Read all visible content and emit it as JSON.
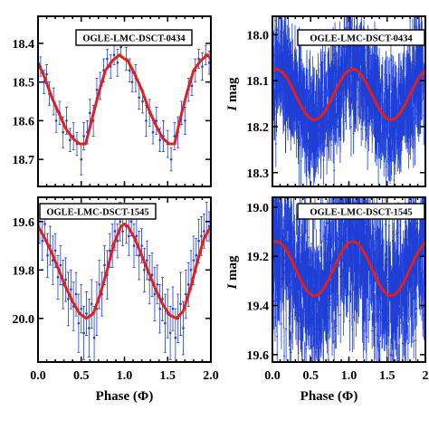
{
  "chart_data": [
    {
      "type": "scatter",
      "star": "OGLE-LMC-DSCT-0434",
      "xlabel": "",
      "ylabel": "",
      "ylabel_visible_fragment": "e",
      "xlim": [
        0.0,
        2.0
      ],
      "ylim": [
        18.77,
        18.33
      ],
      "y_inverted": true,
      "xticks": [
        "",
        "",
        "",
        "",
        ""
      ],
      "yticks": [
        "18.4",
        "18.5",
        "18.6",
        "18.7"
      ],
      "colors": {
        "points": "#1f3fd6",
        "fit": "#e0201c"
      },
      "series": [
        {
          "type": "line",
          "values_x": [
            0.0,
            0.08,
            0.16,
            0.24,
            0.32,
            0.4,
            0.48,
            0.55,
            0.62,
            0.7,
            0.78,
            0.86,
            0.94,
            1.0,
            1.04,
            1.12,
            1.2,
            1.28,
            1.36,
            1.44,
            1.52,
            1.58,
            1.64,
            1.72,
            1.8,
            1.88,
            1.96,
            2.0
          ],
          "values_y": [
            18.45,
            18.49,
            18.54,
            18.58,
            18.62,
            18.645,
            18.66,
            18.66,
            18.6,
            18.53,
            18.47,
            18.445,
            18.43,
            18.44,
            18.445,
            18.48,
            18.52,
            18.57,
            18.61,
            18.645,
            18.66,
            18.66,
            18.6,
            18.53,
            18.47,
            18.445,
            18.43,
            18.44
          ]
        }
      ],
      "points": {
        "x": [
          0.03,
          0.07,
          0.1,
          0.13,
          0.18,
          0.21,
          0.25,
          0.29,
          0.33,
          0.37,
          0.41,
          0.45,
          0.5,
          0.53,
          0.57,
          0.6,
          0.64,
          0.68,
          0.72,
          0.76,
          0.8,
          0.84,
          0.88,
          0.92,
          0.96,
          1.02,
          1.06,
          1.09,
          1.13,
          1.17,
          1.21,
          1.25,
          1.29,
          1.33,
          1.37,
          1.41,
          1.45,
          1.5,
          1.54,
          1.58,
          1.62,
          1.66,
          1.7,
          1.74,
          1.78,
          1.82,
          1.86,
          1.9,
          1.94,
          1.98
        ],
        "y": [
          18.46,
          18.5,
          18.48,
          18.53,
          18.55,
          18.6,
          18.58,
          18.63,
          18.6,
          18.65,
          18.64,
          18.66,
          18.7,
          18.64,
          18.63,
          18.58,
          18.6,
          18.52,
          18.51,
          18.47,
          18.44,
          18.46,
          18.43,
          18.45,
          18.41,
          18.44,
          18.47,
          18.5,
          18.49,
          18.54,
          18.55,
          18.6,
          18.58,
          18.63,
          18.6,
          18.65,
          18.64,
          18.66,
          18.7,
          18.64,
          18.63,
          18.58,
          18.6,
          18.52,
          18.51,
          18.47,
          18.44,
          18.46,
          18.43,
          18.45
        ],
        "err": [
          0.025,
          0.03,
          0.025,
          0.03,
          0.035,
          0.03,
          0.03,
          0.04,
          0.035,
          0.03,
          0.035,
          0.03,
          0.04,
          0.035,
          0.03,
          0.035,
          0.04,
          0.03,
          0.035,
          0.03,
          0.025,
          0.03,
          0.025,
          0.035,
          0.025,
          0.03,
          0.03,
          0.025,
          0.035,
          0.03,
          0.03,
          0.04,
          0.035,
          0.03,
          0.035,
          0.03,
          0.04,
          0.035,
          0.03,
          0.035,
          0.04,
          0.03,
          0.035,
          0.03,
          0.025,
          0.03,
          0.025,
          0.035,
          0.025,
          0.03
        ]
      }
    },
    {
      "type": "scatter",
      "star": "OGLE-LMC-DSCT-0434",
      "xlabel": "",
      "ylabel": "I mag",
      "ylabel_italic": "I",
      "ylabel_rest": " mag",
      "xlim": [
        0.0,
        2.0
      ],
      "ylim": [
        18.33,
        17.96
      ],
      "y_inverted": true,
      "xticks": [
        "",
        "",
        "",
        "",
        ""
      ],
      "yticks": [
        "18.0",
        "18.1",
        "18.2",
        "18.3"
      ],
      "colors": {
        "points": "#1f3fd6",
        "fit": "#e0201c"
      },
      "series": [
        {
          "type": "line",
          "model": "sinusoid",
          "mean": 18.13,
          "amplitude": 0.055,
          "maximum_phase": 1.05
        }
      ],
      "dense_cloud": {
        "count": 1200,
        "scatter_sigma": 0.05,
        "err": 0.05
      }
    },
    {
      "type": "scatter",
      "star": "OGLE-LMC-DSCT-1545",
      "xlabel": "Phase (Φ)",
      "ylabel": "",
      "ylabel_visible_fragment": "e",
      "xlim": [
        0.0,
        2.0
      ],
      "ylim": [
        20.18,
        19.5
      ],
      "y_inverted": true,
      "xticks": [
        "0.0",
        "0.5",
        "1.0",
        "1.5",
        "2.0"
      ],
      "yticks": [
        "19.6",
        "19.8",
        "20.0"
      ],
      "colors": {
        "points": "#1f3fd6",
        "fit": "#e0201c"
      },
      "series": [
        {
          "type": "line",
          "values_x": [
            0.0,
            0.08,
            0.16,
            0.24,
            0.32,
            0.4,
            0.48,
            0.56,
            0.64,
            0.72,
            0.8,
            0.88,
            0.96,
            1.0,
            1.04,
            1.12,
            1.2,
            1.28,
            1.36,
            1.44,
            1.52,
            1.6,
            1.68,
            1.76,
            1.84,
            1.92,
            2.0
          ],
          "values_y": [
            19.62,
            19.67,
            19.73,
            19.8,
            19.87,
            19.93,
            19.98,
            20.0,
            19.98,
            19.9,
            19.8,
            19.69,
            19.62,
            19.61,
            19.62,
            19.67,
            19.74,
            19.81,
            19.88,
            19.94,
            19.985,
            20.0,
            19.97,
            19.88,
            19.77,
            19.67,
            19.62
          ]
        }
      ],
      "points": {
        "x": [
          0.02,
          0.05,
          0.08,
          0.11,
          0.14,
          0.17,
          0.2,
          0.23,
          0.26,
          0.29,
          0.32,
          0.35,
          0.38,
          0.41,
          0.44,
          0.47,
          0.5,
          0.53,
          0.56,
          0.59,
          0.62,
          0.65,
          0.68,
          0.71,
          0.74,
          0.77,
          0.8,
          0.83,
          0.86,
          0.89,
          0.92,
          0.95,
          0.98,
          1.02,
          1.05,
          1.08,
          1.11,
          1.14,
          1.17,
          1.2,
          1.23,
          1.26,
          1.29,
          1.32,
          1.35,
          1.38,
          1.41,
          1.44,
          1.47,
          1.5,
          1.53,
          1.56,
          1.59,
          1.62,
          1.65,
          1.68,
          1.71,
          1.74,
          1.77,
          1.8,
          1.83,
          1.86,
          1.89,
          1.92,
          1.95,
          1.98
        ],
        "y": [
          19.63,
          19.68,
          19.61,
          19.74,
          19.7,
          19.76,
          19.72,
          19.83,
          19.78,
          19.86,
          19.84,
          19.92,
          19.88,
          19.95,
          19.9,
          20.02,
          19.96,
          20.06,
          19.98,
          20.04,
          19.94,
          20.08,
          19.96,
          19.86,
          19.9,
          19.78,
          19.82,
          19.72,
          19.7,
          19.64,
          19.68,
          19.6,
          19.64,
          19.62,
          19.66,
          19.6,
          19.7,
          19.66,
          19.74,
          19.7,
          19.8,
          19.76,
          19.84,
          19.82,
          19.9,
          19.86,
          19.96,
          19.92,
          20.02,
          19.98,
          20.06,
          19.96,
          20.08,
          20.0,
          19.94,
          20.04,
          19.9,
          19.86,
          19.8,
          19.76,
          19.74,
          19.68,
          19.66,
          19.64,
          19.6,
          19.62
        ],
        "err": [
          0.06,
          0.08,
          0.07,
          0.09,
          0.08,
          0.1,
          0.07,
          0.09,
          0.08,
          0.1,
          0.09,
          0.11,
          0.08,
          0.1,
          0.09,
          0.12,
          0.1,
          0.11,
          0.09,
          0.12,
          0.1,
          0.13,
          0.11,
          0.1,
          0.09,
          0.08,
          0.1,
          0.07,
          0.09,
          0.08,
          0.07,
          0.08,
          0.06,
          0.07,
          0.08,
          0.06,
          0.09,
          0.08,
          0.1,
          0.07,
          0.09,
          0.08,
          0.1,
          0.09,
          0.11,
          0.08,
          0.1,
          0.09,
          0.12,
          0.1,
          0.11,
          0.09,
          0.12,
          0.1,
          0.13,
          0.11,
          0.1,
          0.09,
          0.08,
          0.1,
          0.07,
          0.09,
          0.08,
          0.07,
          0.08,
          0.06
        ]
      }
    },
    {
      "type": "scatter",
      "star": "OGLE-LMC-DSCT-1545",
      "xlabel": "Phase (Φ)",
      "ylabel": "I mag",
      "ylabel_italic": "I",
      "ylabel_rest": " mag",
      "xlim": [
        0.0,
        2.0
      ],
      "ylim": [
        19.63,
        18.96
      ],
      "y_inverted": true,
      "xticks": [
        "0.0",
        "0.5",
        "1.0",
        "1.5",
        "2"
      ],
      "yticks": [
        "19.0",
        "19.2",
        "19.4",
        "19.6"
      ],
      "colors": {
        "points": "#1f3fd6",
        "fit": "#e0201c"
      },
      "series": [
        {
          "type": "line",
          "model": "sinusoid",
          "mean": 19.25,
          "amplitude": 0.11,
          "maximum_phase": 1.05
        }
      ],
      "dense_cloud": {
        "count": 1300,
        "scatter_sigma": 0.13,
        "err": 0.1
      }
    }
  ]
}
